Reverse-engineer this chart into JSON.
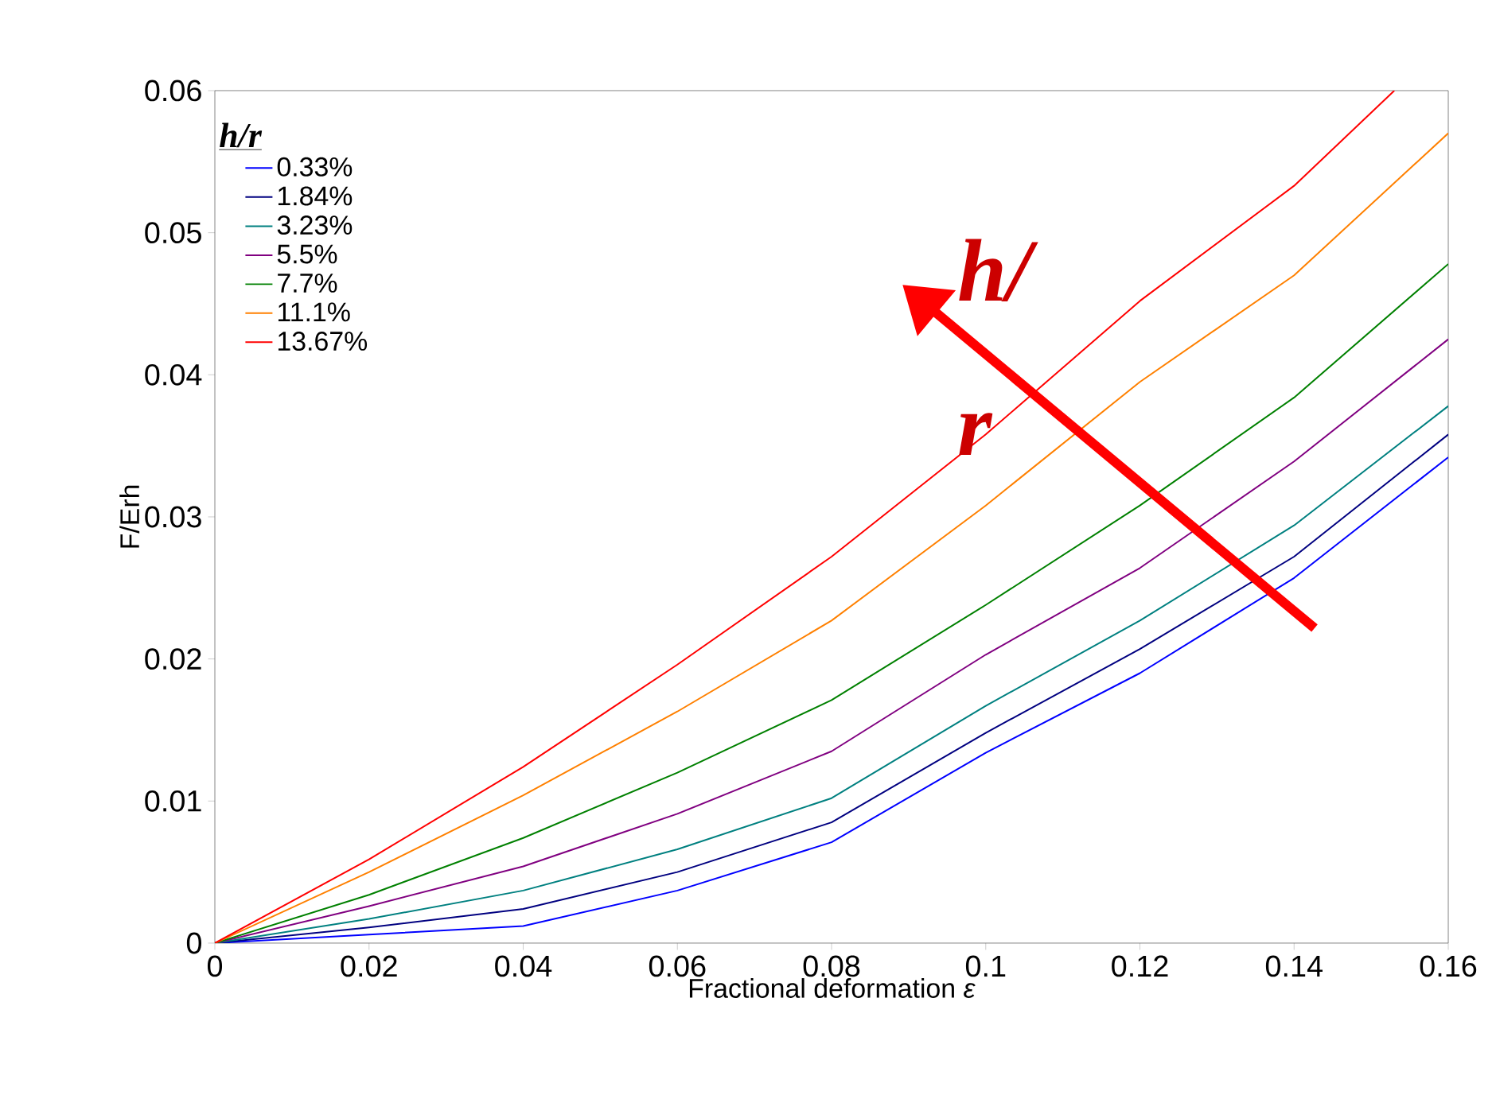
{
  "chart_data": {
    "type": "line",
    "xlabel": "Fractional deformation *ε*",
    "ylabel": "F/Erh",
    "legend_title": "h/r",
    "legend": "top left",
    "grid": false,
    "x": [
      0,
      0.02,
      0.04,
      0.06,
      0.08,
      0.1,
      0.12,
      0.14,
      0.16
    ],
    "xlim": [
      0,
      0.16
    ],
    "xticks": [
      0,
      0.02,
      0.04,
      0.06,
      0.08,
      0.1,
      0.12,
      0.14,
      0.16
    ],
    "ylim": [
      0,
      0.06
    ],
    "yticks": [
      0,
      0.01,
      0.02,
      0.03,
      0.04,
      0.05,
      0.06
    ],
    "series": [
      {
        "name": "0.33%",
        "color": "#0000ff",
        "values": [
          0,
          0.0006,
          0.0012,
          0.0037,
          0.0071,
          0.0134,
          0.019,
          0.0257,
          0.0342
        ]
      },
      {
        "name": "1.84%",
        "color": "#000080",
        "values": [
          0,
          0.0011,
          0.0024,
          0.005,
          0.0085,
          0.0148,
          0.0207,
          0.0272,
          0.0358
        ]
      },
      {
        "name": "3.23%",
        "color": "#008080",
        "values": [
          0,
          0.0017,
          0.0037,
          0.0066,
          0.0102,
          0.0167,
          0.0227,
          0.0294,
          0.0378
        ]
      },
      {
        "name": "5.5%",
        "color": "#800080",
        "values": [
          0,
          0.0026,
          0.0054,
          0.0091,
          0.0135,
          0.0203,
          0.0264,
          0.0339,
          0.0425
        ]
      },
      {
        "name": "7.7%",
        "color": "#008000",
        "values": [
          0,
          0.0034,
          0.0074,
          0.012,
          0.0171,
          0.0238,
          0.0308,
          0.0384,
          0.0478
        ]
      },
      {
        "name": "11.1%",
        "color": "#ff8000",
        "values": [
          0,
          0.005,
          0.0104,
          0.0163,
          0.0227,
          0.0308,
          0.0395,
          0.047,
          0.057
        ]
      },
      {
        "name": "13.67%",
        "color": "#ff0000",
        "x": [
          0,
          0.02,
          0.04,
          0.06,
          0.08,
          0.1,
          0.12,
          0.14,
          0.153
        ],
        "values": [
          0,
          0.0059,
          0.0124,
          0.0196,
          0.0272,
          0.0358,
          0.0452,
          0.0533,
          0.06
        ]
      }
    ],
    "annotations": [
      "h/",
      "r"
    ]
  }
}
